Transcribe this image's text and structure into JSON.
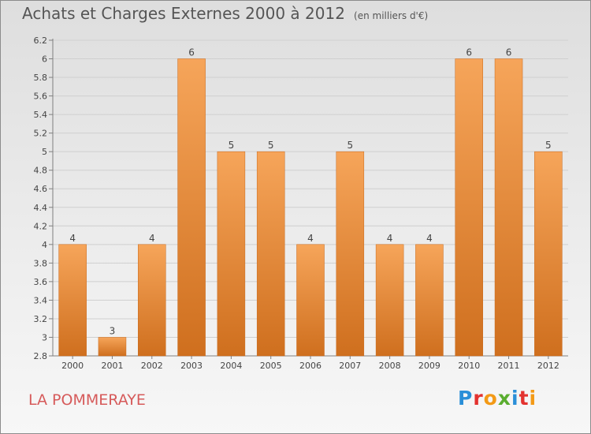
{
  "title": "Achats et Charges Externes 2000 à 2012",
  "subtitle": "(en milliers d'€)",
  "commune": "LA POMMERAYE",
  "logo": {
    "letters": [
      "P",
      "r",
      "o",
      "x",
      "i",
      "t",
      "i"
    ],
    "colors": [
      "#2a8fd8",
      "#e3322f",
      "#f39a16",
      "#5aad2f",
      "#2a8fd8",
      "#e3322f",
      "#f39a16"
    ]
  },
  "colors": {
    "bar_top": "#f6a55a",
    "bar_bottom": "#cf6f1e",
    "grid": "#cfcfcf",
    "axis": "#7f7f7f",
    "text": "#444444"
  },
  "chart_data": {
    "type": "bar",
    "title": "Achats et Charges Externes 2000 à 2012",
    "subtitle": "(en milliers d'€)",
    "categories": [
      "2000",
      "2001",
      "2002",
      "2003",
      "2004",
      "2005",
      "2006",
      "2007",
      "2008",
      "2009",
      "2010",
      "2011",
      "2012"
    ],
    "values": [
      4,
      3,
      4,
      6,
      5,
      5,
      4,
      5,
      4,
      4,
      6,
      6,
      5
    ],
    "data_labels": [
      "4",
      "3",
      "4",
      "6",
      "5",
      "5",
      "4",
      "5",
      "4",
      "4",
      "6",
      "6",
      "5"
    ],
    "yticks": [
      "2.8",
      "3",
      "3.2",
      "3.4",
      "3.6",
      "3.8",
      "4",
      "4.2",
      "4.4",
      "4.6",
      "4.8",
      "5",
      "5.2",
      "5.4",
      "5.6",
      "5.8",
      "6",
      "6.2"
    ],
    "ylim": [
      2.8,
      6.2
    ],
    "grid": true,
    "xlabel": "",
    "ylabel": ""
  }
}
